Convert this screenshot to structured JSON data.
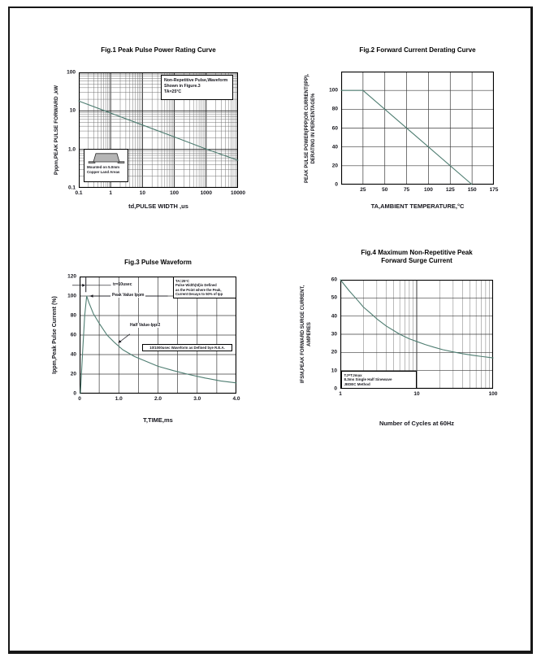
{
  "colors": {
    "curve": "#4e7d71",
    "text": "#16161d",
    "grid_major": "#222222",
    "grid_minor": "#666666",
    "title": "#000000"
  },
  "chart_data": [
    {
      "id": "fig1",
      "type": "line",
      "title": "Fig.1  Peak Pulse Power Rating Curve",
      "xlabel": "td,PULSE WIDTH ,us",
      "ylabel": "Pppm,PEAK PULSE FORWARD ,kW",
      "xscale": "log",
      "yscale": "log",
      "xlim": [
        0.1,
        10000
      ],
      "ylim": [
        0.1,
        100
      ],
      "xticks": [
        {
          "v": 0.1,
          "l": "0.1"
        },
        {
          "v": 1,
          "l": "1"
        },
        {
          "v": 10,
          "l": "10"
        },
        {
          "v": 100,
          "l": "100"
        },
        {
          "v": 1000,
          "l": "1000"
        },
        {
          "v": 10000,
          "l": "10000"
        }
      ],
      "yticks": [
        {
          "v": 100,
          "l": "100"
        },
        {
          "v": 10,
          "l": "10"
        },
        {
          "v": 1,
          "l": "1.0"
        },
        {
          "v": 0.1,
          "l": "0.1"
        }
      ],
      "series": [
        {
          "name": "peak-pulse-power-kw",
          "points": [
            [
              0.1,
              18
            ],
            [
              1,
              8.8
            ],
            [
              10,
              4.3
            ],
            [
              100,
              2.1
            ],
            [
              1000,
              1.02
            ],
            [
              10000,
              0.52
            ]
          ]
        }
      ],
      "note": [
        "Non-Repetitive  Pulse,Waveform",
        "Shown in Figure.3",
        "TA=25°C"
      ],
      "inset": [
        "Mounted on 5.0mm",
        "Copper Land Areas"
      ]
    },
    {
      "id": "fig2",
      "type": "line",
      "title": "Fig.2  Forward Current Derating Curve",
      "xlabel": "TA,AMBIENT TEMPERATURE,°C",
      "ylabel_lines": [
        "PEAK PULSE POWER(PPP)OR CURRENT(IPP),",
        "DERATING IN PERCENTAGE%"
      ],
      "xscale": "linear",
      "yscale": "linear",
      "xlim": [
        0,
        175
      ],
      "ylim": [
        0,
        120
      ],
      "xstep": 25,
      "ystep": 20,
      "xticks": [
        {
          "v": 25,
          "l": "25"
        },
        {
          "v": 50,
          "l": "50"
        },
        {
          "v": 75,
          "l": "75"
        },
        {
          "v": 100,
          "l": "100"
        },
        {
          "v": 125,
          "l": "125"
        },
        {
          "v": 150,
          "l": "150"
        },
        {
          "v": 175,
          "l": "175"
        }
      ],
      "yticks": [
        {
          "v": 0,
          "l": "0"
        },
        {
          "v": 20,
          "l": "20"
        },
        {
          "v": 40,
          "l": "40"
        },
        {
          "v": 60,
          "l": "60"
        },
        {
          "v": 80,
          "l": "80"
        },
        {
          "v": 100,
          "l": "100"
        }
      ],
      "series": [
        {
          "name": "derating-percentage",
          "points": [
            [
              0,
              100
            ],
            [
              25,
              100
            ],
            [
              150,
              0
            ]
          ]
        }
      ]
    },
    {
      "id": "fig3",
      "type": "line",
      "title": "Fig.3  Pulse Waveform",
      "xlabel": "T,TIME,ms",
      "ylabel": "Ippm,Peak Pulse Current (%)",
      "xscale": "linear",
      "yscale": "linear",
      "xlim": [
        0,
        4
      ],
      "ylim": [
        0,
        120
      ],
      "xstep": 0.5,
      "ystep": 20,
      "xticks": [
        {
          "v": 0,
          "l": "0"
        },
        {
          "v": 1,
          "l": "1.0"
        },
        {
          "v": 2,
          "l": "2.0"
        },
        {
          "v": 3,
          "l": "3.0"
        },
        {
          "v": 4,
          "l": "4.0"
        }
      ],
      "yticks": [
        {
          "v": 0,
          "l": "0"
        },
        {
          "v": 20,
          "l": "20"
        },
        {
          "v": 40,
          "l": "40"
        },
        {
          "v": 60,
          "l": "60"
        },
        {
          "v": 80,
          "l": "80"
        },
        {
          "v": 100,
          "l": "100"
        },
        {
          "v": 120,
          "l": "120"
        }
      ],
      "series": [
        {
          "name": "pulse-waveform-percent",
          "points": [
            [
              0.02,
              0
            ],
            [
              0.08,
              45
            ],
            [
              0.13,
              80
            ],
            [
              0.18,
              100
            ],
            [
              0.24,
              93
            ],
            [
              0.35,
              82
            ],
            [
              0.5,
              72
            ],
            [
              0.7,
              60
            ],
            [
              0.9,
              52
            ],
            [
              1.1,
              45
            ],
            [
              1.4,
              38
            ],
            [
              1.7,
              33
            ],
            [
              2.0,
              28
            ],
            [
              2.4,
              23.5
            ],
            [
              2.8,
              19.5
            ],
            [
              3.2,
              16
            ],
            [
              3.6,
              13
            ],
            [
              4.0,
              11
            ]
          ]
        }
      ],
      "note": [
        "TA=25°C",
        "Pulse Width(td)is Defined",
        "as the Point where the Peak,",
        "Current Decays to 50% of Ipp"
      ],
      "ann_tr": "tr=10usec",
      "ann_peak": "Peak Value  Ippm",
      "ann_half": "Half Value-Ipp/2",
      "ann_rea": "10/1000usec Waveform as Defined bye R.E.A."
    },
    {
      "id": "fig4",
      "type": "line",
      "title_lines": [
        "Fig.4  Maximum Non-Repetitive Peak",
        "Forward Surge Current"
      ],
      "xlabel": "Number of Cycles at 60Hz",
      "ylabel_lines": [
        "IFSM,PEAK FORWARD SURGE CURRENT,",
        "AMPERES"
      ],
      "xscale": "log",
      "yscale": "linear",
      "xlim": [
        1,
        100
      ],
      "ylim": [
        0,
        60
      ],
      "ystep": 10,
      "xticks": [
        {
          "v": 1,
          "l": "1"
        },
        {
          "v": 10,
          "l": "10"
        },
        {
          "v": 100,
          "l": "100"
        }
      ],
      "yticks": [
        {
          "v": 0,
          "l": "0"
        },
        {
          "v": 10,
          "l": "10"
        },
        {
          "v": 20,
          "l": "20"
        },
        {
          "v": 30,
          "l": "30"
        },
        {
          "v": 40,
          "l": "40"
        },
        {
          "v": 50,
          "l": "50"
        },
        {
          "v": 60,
          "l": "60"
        }
      ],
      "series": [
        {
          "name": "surge-current-amperes",
          "points": [
            [
              1,
              60
            ],
            [
              1.3,
              54
            ],
            [
              1.7,
              48.5
            ],
            [
              2,
              45
            ],
            [
              2.5,
              41.5
            ],
            [
              3,
              38.5
            ],
            [
              4,
              34.5
            ],
            [
              5,
              32
            ],
            [
              6,
              30
            ],
            [
              8,
              27.5
            ],
            [
              10,
              26
            ],
            [
              13,
              24.3
            ],
            [
              17,
              22.8
            ],
            [
              22,
              21.5
            ],
            [
              30,
              20.3
            ],
            [
              40,
              19.3
            ],
            [
              55,
              18.4
            ],
            [
              70,
              17.8
            ],
            [
              100,
              17
            ]
          ]
        }
      ],
      "note": [
        "TJ=TJmax",
        "8.3ms Single Half Sinewave",
        "JEDEC Method"
      ]
    }
  ]
}
